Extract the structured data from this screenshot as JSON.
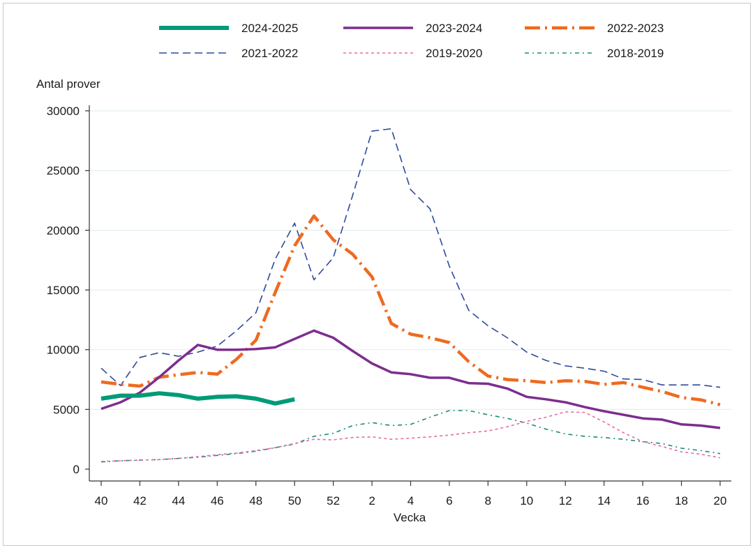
{
  "chart_data": {
    "type": "line",
    "ylabel": "Antal prover",
    "xlabel": "Vecka",
    "ylim": [
      0,
      30000
    ],
    "yticks": [
      0,
      5000,
      10000,
      15000,
      20000,
      25000,
      30000
    ],
    "ytick_labels": [
      "0",
      "5000",
      "10000",
      "15000",
      "20000",
      "25000",
      "30000"
    ],
    "x_categories": [
      "40",
      "41",
      "42",
      "43",
      "44",
      "45",
      "46",
      "47",
      "48",
      "49",
      "50",
      "51",
      "52",
      "1",
      "2",
      "3",
      "4",
      "5",
      "6",
      "7",
      "8",
      "9",
      "10",
      "11",
      "12",
      "13",
      "14",
      "15",
      "16",
      "17",
      "18",
      "19",
      "20"
    ],
    "xtick_labels": [
      "40",
      "42",
      "44",
      "46",
      "48",
      "50",
      "52",
      "2",
      "4",
      "6",
      "8",
      "10",
      "12",
      "14",
      "16",
      "18",
      "20"
    ],
    "grid": "horizontal",
    "legend_position": "top",
    "series": [
      {
        "name": "2024-2025",
        "color": "#009b77",
        "style": "solid-thick",
        "values": [
          5900,
          6150,
          6150,
          6350,
          6200,
          5900,
          6050,
          6100,
          5900,
          5500,
          5850
        ]
      },
      {
        "name": "2023-2024",
        "color": "#7d2d8f",
        "style": "solid",
        "values": [
          5050,
          5600,
          6400,
          7700,
          9100,
          10400,
          10000,
          10000,
          10050,
          10200,
          10900,
          11600,
          11000,
          9900,
          8850,
          8100,
          7950,
          7650,
          7650,
          7200,
          7150,
          6750,
          6050,
          5850,
          5600,
          5200,
          4850,
          4550,
          4250,
          4150,
          3750,
          3650,
          3450
        ]
      },
      {
        "name": "2022-2023",
        "color": "#ef6a1f",
        "style": "dash-dot-thick",
        "values": [
          7300,
          7100,
          6950,
          7700,
          7900,
          8100,
          7950,
          9200,
          10800,
          14800,
          18700,
          21200,
          19200,
          18000,
          16100,
          12200,
          11300,
          11000,
          10600,
          9000,
          7800,
          7500,
          7400,
          7250,
          7400,
          7350,
          7100,
          7250,
          6850,
          6500,
          6000,
          5800,
          5400
        ]
      },
      {
        "name": "2021-2022",
        "color": "#2e4a9a",
        "style": "dashed",
        "values": [
          8450,
          7000,
          9350,
          9750,
          9450,
          9800,
          10300,
          11600,
          13100,
          17600,
          20600,
          15850,
          17700,
          22900,
          28300,
          28500,
          23400,
          21800,
          17000,
          13300,
          12000,
          11000,
          9800,
          9100,
          8650,
          8450,
          8200,
          7550,
          7500,
          7050,
          7050,
          7050,
          6850
        ]
      },
      {
        "name": "2019-2020",
        "color": "#e86aa6",
        "style": "dotted",
        "values": [
          650,
          700,
          750,
          800,
          900,
          1050,
          1200,
          1350,
          1550,
          1800,
          2150,
          2500,
          2450,
          2650,
          2700,
          2500,
          2600,
          2700,
          2850,
          3050,
          3200,
          3550,
          4000,
          4350,
          4800,
          4750,
          3950,
          3050,
          2300,
          1900,
          1450,
          1250,
          950
        ]
      },
      {
        "name": "2018-2019",
        "color": "#1a8a7a",
        "style": "dash-dot-thin",
        "values": [
          600,
          700,
          750,
          800,
          900,
          1000,
          1150,
          1300,
          1500,
          1800,
          2100,
          2750,
          3000,
          3650,
          3900,
          3650,
          3750,
          4350,
          4900,
          4900,
          4550,
          4250,
          3850,
          3350,
          2950,
          2750,
          2650,
          2500,
          2300,
          2150,
          1750,
          1550,
          1300
        ]
      }
    ]
  }
}
